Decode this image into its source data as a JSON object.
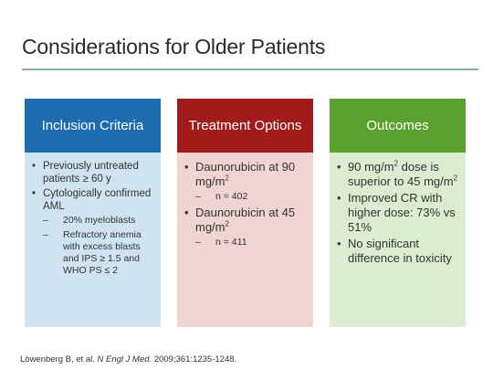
{
  "slide": {
    "title": "Considerations for Older Patients",
    "citation": {
      "authors": "Löwenberg B, et al.",
      "journal": "N Engl J Med.",
      "details": "2009;361:1235-1248."
    }
  },
  "cards": {
    "inclusion": {
      "header": "Inclusion Criteria",
      "items": [
        "Previously untreated patients ≥ 60 y",
        "Cytologically confirmed AML"
      ],
      "subitems": [
        "20% myeloblasts",
        "Refractory anemia with excess blasts and IPS ≥ 1.5 and WHO PS ≤ 2"
      ]
    },
    "treatment": {
      "header": "Treatment Options",
      "item1_text": "Daunorubicin at 90 mg/m",
      "item1_sup": "2",
      "item1_sub": "n = 402",
      "item2_text": "Daunorubicin at 45 mg/m",
      "item2_sup": "2",
      "item2_sub": "n = 411"
    },
    "outcomes": {
      "header": "Outcomes",
      "item1_a": "90 mg/m",
      "item1_sup1": "2",
      "item1_b": " dose is superior to 45 mg/m",
      "item1_sup2": "2",
      "item2": "Improved CR with higher dose: 73% vs 51%",
      "item3": "No significant difference in toxicity"
    }
  },
  "colors": {
    "inclusion_header": "#1f6bb0",
    "inclusion_body": "#cfe3f1",
    "treatment_header": "#a11b1b",
    "treatment_body": "#f0d3d3",
    "outcomes_header": "#5aa12d",
    "outcomes_body": "#dcecd0",
    "title_rule": "#8aa9b3"
  }
}
